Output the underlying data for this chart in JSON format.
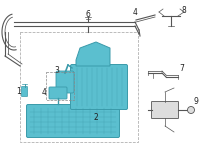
{
  "bg_color": "#ffffff",
  "cyan": "#5bbfcf",
  "cyan_dark": "#3a9aaa",
  "cyan_mid": "#4aaabb",
  "line": "#555555",
  "line_thin": "#777777",
  "gray_light": "#dddddd",
  "label_col": "#222222",
  "fig_width": 2.0,
  "fig_height": 1.47,
  "dpi": 100
}
